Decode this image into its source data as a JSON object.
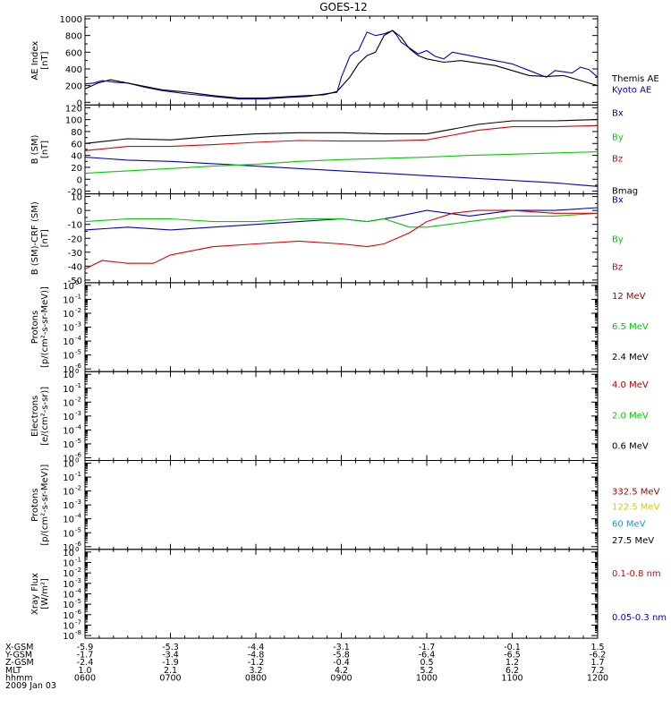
{
  "title": "GOES-12",
  "colors": {
    "black": "#000000",
    "blue": "#0000cc",
    "red": "#dd0000",
    "green": "#00cc00",
    "darkred": "#aa0000",
    "yellow": "#e6c200",
    "cyan": "#00a0e0"
  },
  "chart_data": [
    {
      "type": "line",
      "panel": "ae",
      "ylabel": [
        "AE Index",
        "[nT]"
      ],
      "ylim": [
        0,
        1000
      ],
      "yticks": [
        0,
        200,
        400,
        600,
        800,
        1000
      ],
      "yticklabels": [
        "0",
        "200",
        "400",
        "600",
        "800",
        "1000"
      ],
      "xlim": [
        6.0,
        12.0
      ],
      "series": [
        {
          "name": "Kyoto AE",
          "color": "blue",
          "legend_at": 160,
          "x": [
            6.0,
            6.1,
            6.2,
            6.35,
            6.5,
            6.7,
            6.9,
            7.2,
            7.5,
            7.8,
            8.1,
            8.4,
            8.6,
            8.8,
            8.95,
            9.0,
            9.1,
            9.15,
            9.2,
            9.3,
            9.4,
            9.5,
            9.6,
            9.65,
            9.7,
            9.8,
            9.9,
            10.0,
            10.1,
            10.2,
            10.3,
            10.4,
            10.5,
            10.6,
            10.7,
            10.8,
            10.9,
            11.0,
            11.1,
            11.2,
            11.4,
            11.5,
            11.7,
            11.8,
            11.9,
            12.0
          ],
          "y": [
            220,
            230,
            260,
            240,
            230,
            180,
            140,
            100,
            70,
            40,
            40,
            60,
            70,
            100,
            120,
            300,
            550,
            600,
            620,
            840,
            800,
            820,
            860,
            800,
            720,
            650,
            580,
            620,
            550,
            520,
            600,
            580,
            560,
            540,
            520,
            500,
            480,
            460,
            420,
            380,
            300,
            380,
            350,
            420,
            390,
            300
          ]
        },
        {
          "name": "Themis AE",
          "color": "black",
          "legend_at": 290,
          "x": [
            6.0,
            6.15,
            6.3,
            6.5,
            6.7,
            6.9,
            7.2,
            7.5,
            7.8,
            8.1,
            8.4,
            8.6,
            8.8,
            8.95,
            9.1,
            9.2,
            9.3,
            9.4,
            9.5,
            9.6,
            9.7,
            9.8,
            9.9,
            10.0,
            10.2,
            10.4,
            10.6,
            10.8,
            11.0,
            11.2,
            11.4,
            11.6,
            11.8,
            12.0
          ],
          "y": [
            160,
            230,
            270,
            230,
            190,
            150,
            120,
            80,
            50,
            50,
            70,
            80,
            90,
            130,
            300,
            460,
            560,
            600,
            800,
            860,
            780,
            640,
            560,
            520,
            480,
            500,
            470,
            440,
            380,
            320,
            310,
            320,
            260,
            200
          ]
        }
      ]
    },
    {
      "type": "line",
      "panel": "bsm",
      "ylabel": [
        "B (SM)",
        "[nT]"
      ],
      "ylim": [
        -20,
        120
      ],
      "yticks": [
        -20,
        0,
        20,
        40,
        60,
        80,
        100,
        120
      ],
      "yticklabels": [
        "-20",
        "0",
        "20",
        "40",
        "60",
        "80",
        "100",
        "120"
      ],
      "xlim": [
        6.0,
        12.0
      ],
      "series": [
        {
          "name": "Bmag",
          "color": "black",
          "legend_at": -18,
          "x": [
            6.0,
            6.5,
            7.0,
            7.5,
            8.0,
            8.5,
            9.0,
            9.5,
            10.0,
            10.3,
            10.6,
            11.0,
            11.5,
            12.0
          ],
          "y": [
            60,
            68,
            66,
            72,
            76,
            78,
            78,
            76,
            76,
            84,
            92,
            98,
            98,
            100
          ]
        },
        {
          "name": "Bx",
          "color": "blue",
          "legend_at": 112,
          "x": [
            6.0,
            6.5,
            7.0,
            7.5,
            8.0,
            8.5,
            9.0,
            9.5,
            10.0,
            10.5,
            11.0,
            11.5,
            12.0
          ],
          "y": [
            37,
            32,
            30,
            26,
            22,
            18,
            14,
            10,
            6,
            2,
            -2,
            -6,
            -12
          ]
        },
        {
          "name": "By",
          "color": "green",
          "legend_at": 72,
          "x": [
            6.0,
            6.5,
            7.0,
            7.5,
            8.0,
            8.5,
            9.0,
            9.5,
            10.0,
            10.5,
            11.0,
            11.5,
            12.0
          ],
          "y": [
            10,
            14,
            18,
            22,
            25,
            30,
            33,
            35,
            37,
            40,
            42,
            44,
            46
          ]
        },
        {
          "name": "Bz",
          "color": "red",
          "legend_at": 36,
          "x": [
            6.0,
            6.5,
            7.0,
            7.5,
            8.0,
            8.5,
            9.0,
            9.5,
            10.0,
            10.3,
            10.6,
            11.0,
            11.5,
            12.0
          ],
          "y": [
            48,
            55,
            55,
            58,
            62,
            65,
            64,
            64,
            66,
            74,
            82,
            88,
            88,
            90
          ]
        }
      ]
    },
    {
      "type": "line",
      "panel": "bdiff",
      "ylabel": [
        "B (SM)-CRF (SM)",
        "[nT]"
      ],
      "ylim": [
        -50,
        10
      ],
      "yticks": [
        -50,
        -40,
        -30,
        -20,
        -10,
        0,
        10
      ],
      "yticklabels": [
        "-50",
        "-40",
        "-30",
        "-20",
        "-10",
        "0",
        "10"
      ],
      "xlim": [
        6.0,
        12.0
      ],
      "series": [
        {
          "name": "Bx",
          "color": "blue",
          "legend_at": 8,
          "x": [
            6.0,
            6.5,
            7.0,
            7.5,
            8.0,
            8.5,
            9.0,
            9.3,
            9.6,
            10.0,
            10.5,
            11.0,
            11.5,
            12.0
          ],
          "y": [
            -14,
            -12,
            -14,
            -12,
            -10,
            -8,
            -6,
            -8,
            -5,
            0,
            -4,
            0,
            0,
            2
          ]
        },
        {
          "name": "By",
          "color": "green",
          "legend_at": -20,
          "x": [
            6.0,
            6.5,
            7.0,
            7.5,
            8.0,
            8.5,
            9.0,
            9.3,
            9.5,
            9.8,
            10.0,
            10.5,
            11.0,
            11.5,
            12.0
          ],
          "y": [
            -8,
            -6,
            -6,
            -8,
            -8,
            -6,
            -6,
            -8,
            -6,
            -12,
            -12,
            -8,
            -4,
            -4,
            -2
          ]
        },
        {
          "name": "Bz",
          "color": "red",
          "legend_at": -40,
          "x": [
            6.0,
            6.2,
            6.5,
            6.8,
            7.0,
            7.5,
            8.0,
            8.5,
            9.0,
            9.3,
            9.5,
            9.8,
            10.0,
            10.3,
            10.6,
            11.0,
            11.5,
            12.0
          ],
          "y": [
            -42,
            -36,
            -38,
            -38,
            -32,
            -26,
            -24,
            -22,
            -24,
            -26,
            -24,
            -16,
            -8,
            -2,
            0,
            0,
            -2,
            -2
          ]
        }
      ]
    },
    {
      "type": "line",
      "panel": "p1",
      "ylabel": [
        "Protons",
        "[p/(cm²-s-sr-MeV)]"
      ],
      "ylog": true,
      "ylim": [
        -6,
        0
      ],
      "ytickpows": [
        "-6",
        "-5",
        "-4",
        "-3",
        "-2",
        "-1",
        "0"
      ],
      "series": [
        {
          "name": "12 MeV",
          "color": "darkred",
          "legend_at": -0.7
        },
        {
          "name": "6.5 MeV",
          "color": "green",
          "legend_at": -2.9
        },
        {
          "name": "2.4 MeV",
          "color": "black",
          "legend_at": -5.1
        }
      ]
    },
    {
      "type": "line",
      "panel": "e1",
      "ylabel": [
        "Electrons",
        "[e/(cm²-s-sr)]"
      ],
      "ylog": true,
      "ylim": [
        -6,
        0
      ],
      "ytickpows": [
        "-6",
        "-5",
        "-4",
        "-3",
        "-2",
        "-1",
        "0"
      ],
      "series": [
        {
          "name": "4.0 MeV",
          "color": "darkred",
          "legend_at": -0.7
        },
        {
          "name": "2.0 MeV",
          "color": "green",
          "legend_at": -2.9
        },
        {
          "name": "0.6 MeV",
          "color": "black",
          "legend_at": -5.1
        }
      ]
    },
    {
      "type": "line",
      "panel": "p2",
      "ylabel": [
        "Protons",
        "[p/(cm²-s-sr-MeV)]"
      ],
      "ylog": true,
      "ylim": [
        -6,
        0
      ],
      "ytickpows": [
        "-6",
        "-5",
        "-4",
        "-3",
        "-2",
        "-1",
        "0"
      ],
      "series": [
        {
          "name": "332.5 MeV",
          "color": "darkred",
          "legend_at": -2.0
        },
        {
          "name": "122.5 MeV",
          "color": "yellow",
          "legend_at": -3.1
        },
        {
          "name": "60 MeV",
          "color": "cyan",
          "legend_at": -4.3
        },
        {
          "name": "27.5 MeV",
          "color": "black",
          "legend_at": -5.5
        }
      ]
    },
    {
      "type": "line",
      "panel": "xray",
      "ylabel": [
        "Xray  Flux",
        "[W/m²]"
      ],
      "ylog": true,
      "ylim": [
        -8,
        0
      ],
      "ytickpows": [
        "-8",
        "-7",
        "-6",
        "-5",
        "-4",
        "-3",
        "-2",
        "-1",
        "0"
      ],
      "series": [
        {
          "name": "0.1-0.8 nm",
          "color": "red",
          "legend_at": -2.0
        },
        {
          "name": "0.05-0.3 nm",
          "color": "blue",
          "legend_at": -6.2
        }
      ]
    }
  ],
  "ephemeris": {
    "row_labels": [
      "X-GSM",
      "Y-GSM",
      "Z-GSM",
      "MLT",
      "hhmm"
    ],
    "columns": [
      {
        "values": [
          "-5.9",
          "-1.7",
          "-2.4",
          "1.0",
          "0600"
        ]
      },
      {
        "values": [
          "-5.3",
          "-3.4",
          "-1.9",
          "2.1",
          "0700"
        ]
      },
      {
        "values": [
          "-4.4",
          "-4.8",
          "-1.2",
          "3.2",
          "0800"
        ]
      },
      {
        "values": [
          "-3.1",
          "-5.8",
          "-0.4",
          "4.2",
          "0900"
        ]
      },
      {
        "values": [
          "-1.7",
          "-6.4",
          "0.5",
          "5.2",
          "1000"
        ]
      },
      {
        "values": [
          "-0.1",
          "-6.5",
          "1.2",
          "6.2",
          "1100"
        ]
      },
      {
        "values": [
          "1.5",
          "-6.2",
          "1.7",
          "7.2",
          "1200"
        ]
      }
    ],
    "date": "2009 Jan 03"
  }
}
